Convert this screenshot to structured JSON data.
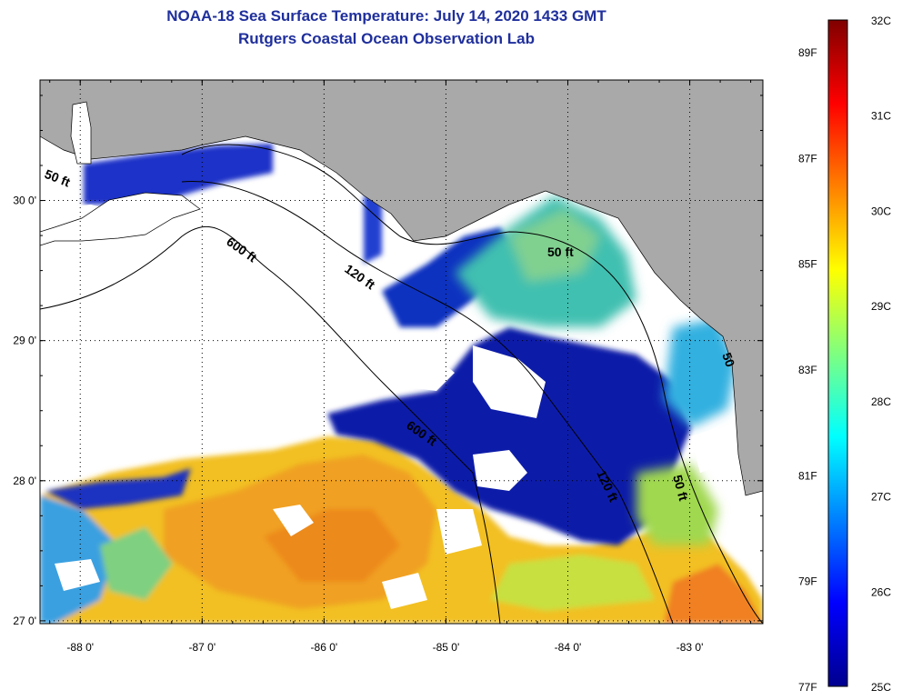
{
  "title": "NOAA-18 Sea Surface Temperature:  July 14, 2020 1433 GMT",
  "subtitle": "Rutgers Coastal Ocean Observation Lab",
  "map": {
    "lon_range": [
      -88.33,
      -82.4
    ],
    "lat_range": [
      26.98,
      30.86
    ],
    "lon_ticks": [
      {
        "value": -88,
        "label": "-88 0'"
      },
      {
        "value": -87,
        "label": "-87 0'"
      },
      {
        "value": -86,
        "label": "-86 0'"
      },
      {
        "value": -85,
        "label": "-85 0'"
      },
      {
        "value": -84,
        "label": "-84 0'"
      },
      {
        "value": -83,
        "label": "-83 0'"
      }
    ],
    "lat_ticks": [
      {
        "value": 30,
        "label": "30 0'"
      },
      {
        "value": 29,
        "label": "29 0'"
      },
      {
        "value": 28,
        "label": "28 0'"
      },
      {
        "value": 27,
        "label": "27 0'"
      }
    ],
    "grid": "dotted",
    "contour_labels": [
      "50 ft",
      "600 ft",
      "120 ft",
      "50 ft",
      "600 ft",
      "120 ft",
      "50 ft",
      "50"
    ],
    "colors": {
      "land": "#a9a9a9",
      "cloud": "#ffffff",
      "ocean_cold": "#00008f",
      "ocean_warm": "#f0a020"
    }
  },
  "colorbar": {
    "min_c": 25,
    "max_c": 32,
    "celsius_labels": [
      "32C",
      "31C",
      "30C",
      "29C",
      "28C",
      "27C",
      "26C",
      "25C"
    ],
    "fahrenheit_labels": [
      "89F",
      "87F",
      "85F",
      "83F",
      "81F",
      "79F",
      "77F"
    ],
    "fahrenheit_values": [
      89,
      87,
      85,
      83,
      81,
      79,
      77
    ],
    "colormap": "jet"
  }
}
